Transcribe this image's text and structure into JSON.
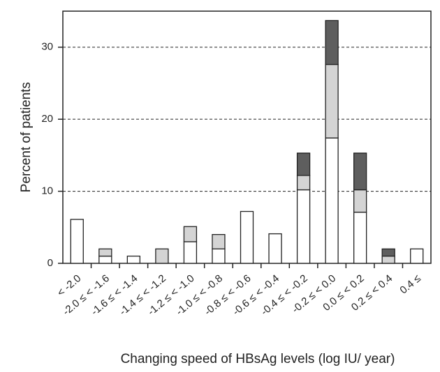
{
  "chart_data": {
    "type": "stacked_bar",
    "x_label": "Changing speed of HBsAg levels (log IU/ year)",
    "y_label": "Percent of patients",
    "categories": [
      "< -2.0",
      "-2.0 ≤ < -1.6",
      "-1.6 ≤ < -1.4",
      "-1.4 ≤ < -1.2",
      "-1.2 ≤ < -1.0",
      "-1.0 ≤ < -0.8",
      "-0.8 ≤ < -0.6",
      "-0.6 ≤ < -0.4",
      "-0.4 ≤ < -0.2",
      "-0.2 ≤ < 0.0",
      "0.0 ≤ < 0.2",
      "0.2 ≤ < 0.4",
      "0.4 ≤"
    ],
    "series": [
      {
        "color": "#ffffff",
        "values": [
          6.1,
          1,
          1,
          0,
          3,
          2,
          7.2,
          4.1,
          10.2,
          17.4,
          7.1,
          0,
          2
        ]
      },
      {
        "color": "#d4d4d4",
        "values": [
          0,
          1,
          0,
          2,
          2.1,
          2,
          0,
          0,
          2,
          10.2,
          3.1,
          1,
          0
        ]
      },
      {
        "color": "#5e5e5e",
        "values": [
          0,
          0,
          0,
          0,
          0,
          0,
          0,
          0,
          3.1,
          6.1,
          5.1,
          1,
          0
        ]
      }
    ],
    "ylim": [
      0,
      35
    ],
    "yticks": [
      0,
      10,
      20,
      30
    ],
    "grid": true
  }
}
